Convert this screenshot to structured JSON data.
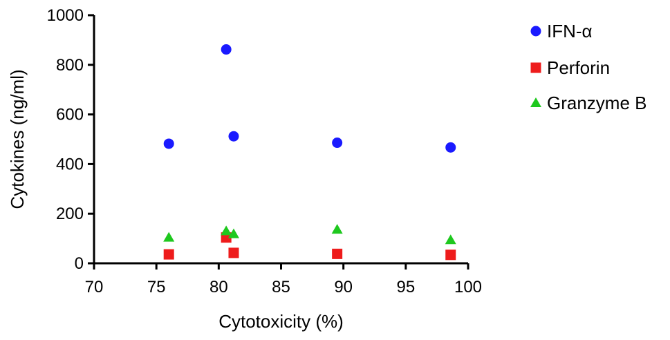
{
  "chart_data": {
    "type": "scatter",
    "xlabel": "Cytotoxicity (%)",
    "ylabel": "Cytokines (ng/ml)",
    "xlim": [
      70,
      100
    ],
    "ylim": [
      0,
      1000
    ],
    "xticks": [
      70,
      75,
      80,
      85,
      90,
      95,
      100
    ],
    "yticks": [
      0,
      200,
      400,
      600,
      800,
      1000
    ],
    "grid": false,
    "legend_position": "top-right",
    "series": [
      {
        "name": "IFN-α",
        "marker": "circle",
        "color": "#1a1aff",
        "points": [
          {
            "x": 76.0,
            "y": 482
          },
          {
            "x": 80.6,
            "y": 862
          },
          {
            "x": 81.2,
            "y": 512
          },
          {
            "x": 89.5,
            "y": 486
          },
          {
            "x": 98.6,
            "y": 467
          }
        ]
      },
      {
        "name": "Perforin",
        "marker": "square",
        "color": "#ee1c1c",
        "points": [
          {
            "x": 76.0,
            "y": 36
          },
          {
            "x": 80.6,
            "y": 104
          },
          {
            "x": 81.2,
            "y": 42
          },
          {
            "x": 89.5,
            "y": 38
          },
          {
            "x": 98.6,
            "y": 34
          }
        ]
      },
      {
        "name": "Granzyme B",
        "marker": "triangle",
        "color": "#1ec81e",
        "points": [
          {
            "x": 76.0,
            "y": 104
          },
          {
            "x": 80.6,
            "y": 130
          },
          {
            "x": 81.2,
            "y": 118
          },
          {
            "x": 89.5,
            "y": 136
          },
          {
            "x": 98.6,
            "y": 94
          }
        ]
      }
    ]
  }
}
